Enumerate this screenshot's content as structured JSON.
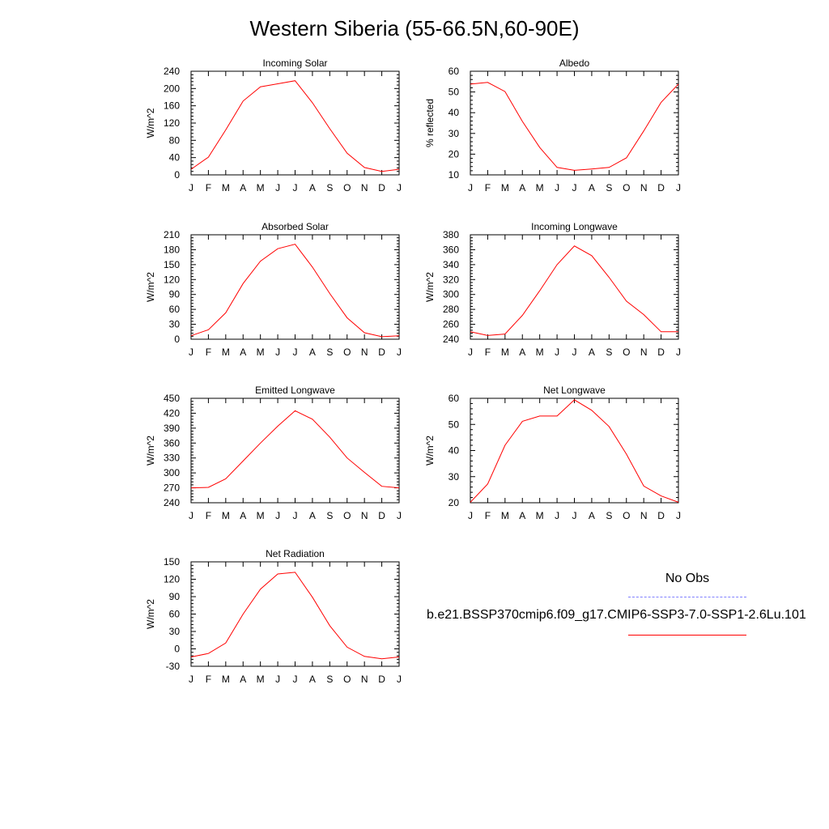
{
  "title": "Western Siberia (55-66.5N,60-90E)",
  "legend": {
    "obs_label": "No Obs",
    "obs_color": "#8080ff",
    "run_label": "b.e21.BSSP370cmip6.f09_g17.CMIP6-SSP3-7.0-SSP1-2.6Lu.101",
    "run_color": "#ff0000"
  },
  "chart_data": [
    {
      "type": "line",
      "title": "Incoming Solar",
      "ylabel": "W/m^2",
      "x": [
        "J",
        "F",
        "M",
        "A",
        "M",
        "J",
        "J",
        "A",
        "S",
        "O",
        "N",
        "D",
        "J"
      ],
      "ylim": [
        0,
        240
      ],
      "yticks": [
        0,
        40,
        80,
        120,
        160,
        200,
        240
      ],
      "series": [
        {
          "values": [
            13,
            41,
            104,
            171,
            204,
            211,
            218,
            167,
            107,
            50,
            17,
            8,
            13
          ],
          "color": "#ff0000"
        }
      ]
    },
    {
      "type": "line",
      "title": "Albedo",
      "ylabel": "% reflected",
      "x": [
        "J",
        "F",
        "M",
        "A",
        "M",
        "J",
        "J",
        "A",
        "S",
        "O",
        "N",
        "D",
        "J"
      ],
      "ylim": [
        10,
        60
      ],
      "yticks": [
        10,
        20,
        30,
        40,
        50,
        60
      ],
      "series": [
        {
          "values": [
            53.8,
            54.6,
            50.2,
            35.8,
            23.2,
            13.6,
            12.2,
            12.8,
            13.6,
            18.2,
            31.2,
            45.0,
            53.8
          ],
          "color": "#ff0000"
        }
      ]
    },
    {
      "type": "line",
      "title": "Absorbed Solar",
      "ylabel": "W/m^2",
      "x": [
        "J",
        "F",
        "M",
        "A",
        "M",
        "J",
        "J",
        "A",
        "S",
        "O",
        "N",
        "D",
        "J"
      ],
      "ylim": [
        0,
        210
      ],
      "yticks": [
        0,
        30,
        60,
        90,
        120,
        150,
        180,
        210
      ],
      "series": [
        {
          "values": [
            7,
            19,
            53,
            112,
            157,
            182,
            191,
            145,
            92,
            43,
            13,
            5,
            7
          ],
          "color": "#ff0000"
        }
      ]
    },
    {
      "type": "line",
      "title": "Incoming Longwave",
      "ylabel": "W/m^2",
      "x": [
        "J",
        "F",
        "M",
        "A",
        "M",
        "J",
        "J",
        "A",
        "S",
        "O",
        "N",
        "D",
        "J"
      ],
      "ylim": [
        240,
        380
      ],
      "yticks": [
        240,
        260,
        280,
        300,
        320,
        340,
        360,
        380
      ],
      "series": [
        {
          "values": [
            250,
            245,
            247,
            272,
            305,
            340,
            365,
            352,
            323,
            291,
            273,
            250,
            250
          ],
          "color": "#ff0000"
        }
      ]
    },
    {
      "type": "line",
      "title": "Emitted Longwave",
      "ylabel": "W/m^2",
      "x": [
        "J",
        "F",
        "M",
        "A",
        "M",
        "J",
        "J",
        "A",
        "S",
        "O",
        "N",
        "D",
        "J"
      ],
      "ylim": [
        240,
        450
      ],
      "yticks": [
        240,
        270,
        300,
        330,
        360,
        390,
        420,
        450
      ],
      "series": [
        {
          "values": [
            270,
            271,
            288,
            324,
            360,
            394,
            425,
            408,
            372,
            330,
            301,
            273,
            270
          ],
          "color": "#ff0000"
        }
      ]
    },
    {
      "type": "line",
      "title": "Net Longwave",
      "ylabel": "W/m^2",
      "x": [
        "J",
        "F",
        "M",
        "A",
        "M",
        "J",
        "J",
        "A",
        "S",
        "O",
        "N",
        "D",
        "J"
      ],
      "ylim": [
        20,
        60
      ],
      "yticks": [
        20,
        30,
        40,
        50,
        60
      ],
      "series": [
        {
          "values": [
            20.2,
            27.2,
            42.0,
            51.2,
            53.2,
            53.2,
            59.4,
            55.4,
            49.2,
            38.6,
            26.4,
            22.6,
            20.2
          ],
          "color": "#ff0000"
        }
      ]
    },
    {
      "type": "line",
      "title": "Net Radiation",
      "ylabel": "W/m^2",
      "x": [
        "J",
        "F",
        "M",
        "A",
        "M",
        "J",
        "J",
        "A",
        "S",
        "O",
        "N",
        "D",
        "J"
      ],
      "ylim": [
        -30,
        150
      ],
      "yticks": [
        -30,
        0,
        30,
        60,
        90,
        120,
        150
      ],
      "series": [
        {
          "values": [
            -14,
            -8,
            10,
            60,
            103,
            129,
            132,
            89,
            40,
            3,
            -13,
            -17,
            -14
          ],
          "color": "#ff0000"
        }
      ]
    }
  ]
}
